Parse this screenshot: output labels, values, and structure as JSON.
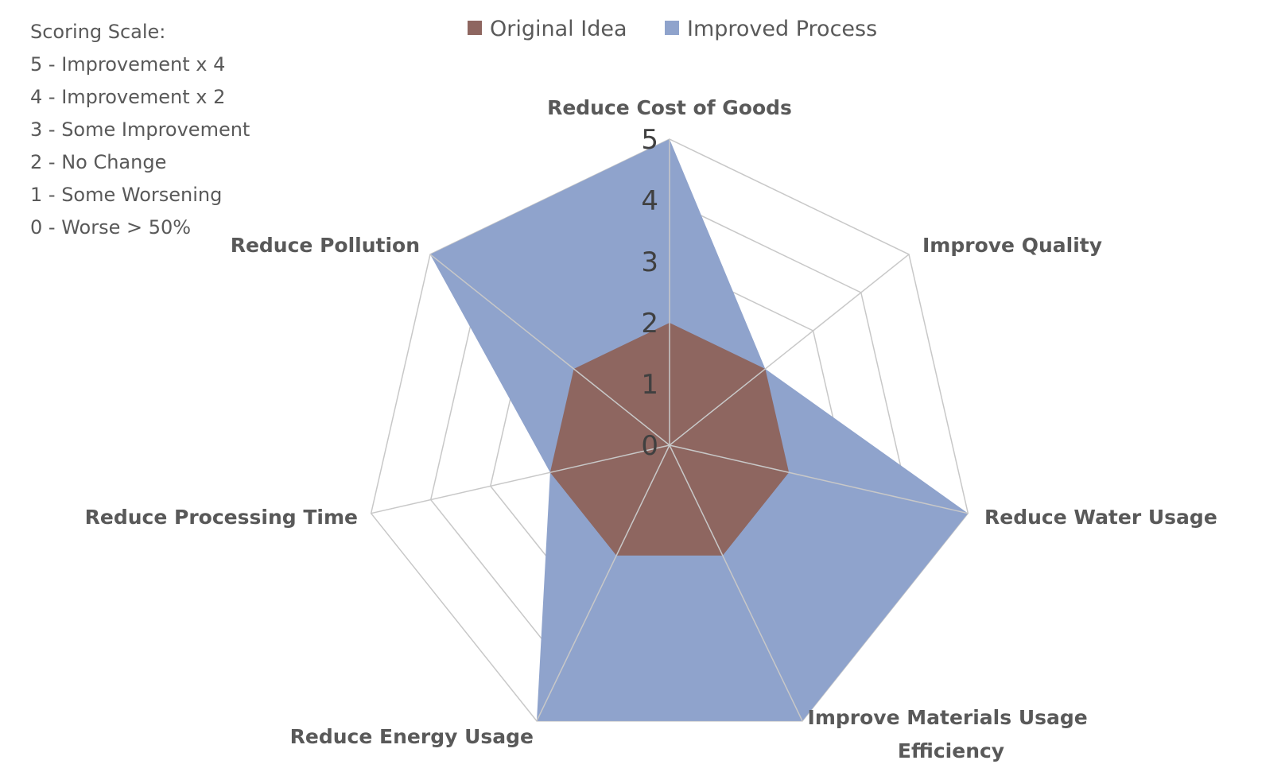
{
  "chart_data": {
    "type": "radar",
    "title": "",
    "categories": [
      "Reduce Cost of Goods",
      "Improve Quality",
      "Reduce Water Usage",
      "Improve Materials Usage Efficiency",
      "Reduce Energy Usage",
      "Reduce Processing Time",
      "Reduce Pollution"
    ],
    "series": [
      {
        "name": "Improved Process",
        "color": "#8fa3cc",
        "values": [
          5,
          2,
          5,
          5,
          5,
          2,
          5
        ]
      },
      {
        "name": "Original Idea",
        "color": "#8e6660",
        "values": [
          2,
          2,
          2,
          2,
          2,
          2,
          2
        ]
      }
    ],
    "r_ticks": [
      "0",
      "1",
      "2",
      "3",
      "4",
      "5"
    ],
    "r_range": [
      0,
      5
    ],
    "legend_position": "top",
    "grid": true
  },
  "scoring_scale": {
    "heading": "Scoring Scale:",
    "items": [
      "5 - Improvement x 4",
      "4 - Improvement x 2",
      "3 - Some Improvement",
      "2 - No Change",
      "1 - Some Worsening",
      "0 - Worse > 50%"
    ]
  }
}
